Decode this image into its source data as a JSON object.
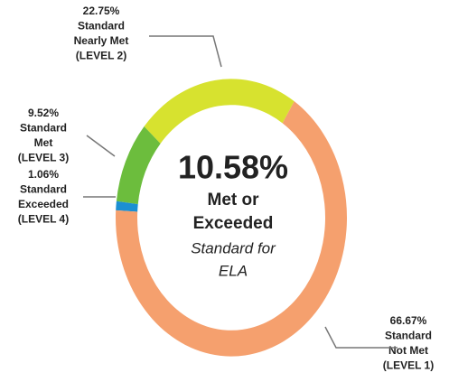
{
  "chart_data": {
    "type": "donut",
    "categories": [
      [
        "Standard",
        "Not Met",
        "(LEVEL 1)"
      ],
      [
        "Standard",
        "Exceeded",
        "(LEVEL 4)"
      ],
      [
        "Standard",
        "Met",
        "(LEVEL 3)"
      ],
      [
        "Standard",
        "Nearly Met",
        "(LEVEL 2)"
      ]
    ],
    "values": [
      66.67,
      1.06,
      9.52,
      22.75
    ],
    "value_labels": [
      "66.67%",
      "1.06%",
      "9.52%",
      "22.75%"
    ],
    "colors": [
      "#f5a06e",
      "#1b8fd2",
      "#6cbd3d",
      "#d7e22f"
    ],
    "center_text": {
      "value_label": "10.58%",
      "lines": [
        "Met or",
        "Exceeded"
      ],
      "subtitle_lines": [
        "Standard for",
        "ELA"
      ]
    }
  }
}
